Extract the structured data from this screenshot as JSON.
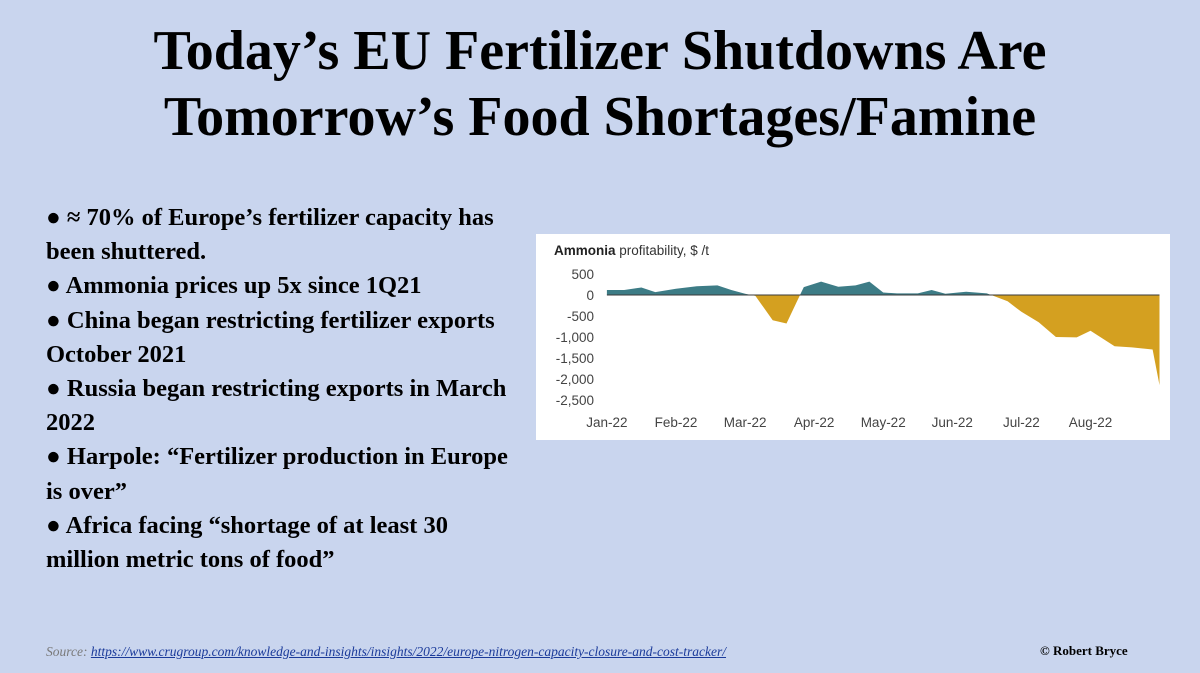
{
  "title": {
    "line1": "Today’s EU Fertilizer Shutdowns Are",
    "line2": "Tomorrow’s Food Shortages/Famine"
  },
  "bullets": [
    "●  ≈ 70% of Europe’s fertilizer capacity has been shuttered.",
    "● Ammonia prices up 5x since 1Q21",
    "● China began restricting fertilizer exports October 2021",
    "● Russia began restricting exports in March 2022",
    "● Harpole: “Fertilizer production in Europe is over”",
    "● Africa facing “shortage of at least 30 million metric tons of food”"
  ],
  "source": {
    "label": "Source: ",
    "url": "https://www.crugroup.com/knowledge-and-insights/insights/2022/europe-nitrogen-capacity-closure-and-cost-tracker/"
  },
  "copyright": "© Robert Bryce",
  "chart_data": {
    "type": "area",
    "title_bold": "Ammonia",
    "title_rest": " profitability, $ /t",
    "y_ticks": [
      "500",
      "0",
      "-500",
      "-1,000",
      "-1,500",
      "-2,000",
      "-2,500"
    ],
    "y_tick_values": [
      500,
      0,
      -500,
      -1000,
      -1500,
      -2000,
      -2500
    ],
    "x_ticks": [
      "Jan-22",
      "Feb-22",
      "Mar-22",
      "Apr-22",
      "May-22",
      "Jun-22",
      "Jul-22",
      "Aug-22"
    ],
    "ylim": [
      -2600,
      550
    ],
    "xlim": [
      -0.1,
      8.05
    ],
    "x": [
      0,
      0.25,
      0.5,
      0.7,
      1.0,
      1.3,
      1.6,
      1.8,
      2.0,
      2.15,
      2.4,
      2.6,
      2.85,
      3.1,
      3.35,
      3.6,
      3.8,
      4.0,
      4.2,
      4.5,
      4.7,
      4.9,
      5.2,
      5.5,
      5.8,
      6.0,
      6.25,
      6.5,
      6.8,
      7.0,
      7.35,
      7.6,
      7.9,
      8.0
    ],
    "y": [
      120,
      120,
      180,
      70,
      150,
      210,
      230,
      120,
      30,
      -20,
      -600,
      -680,
      190,
      320,
      200,
      230,
      320,
      60,
      40,
      40,
      120,
      30,
      80,
      40,
      -150,
      -400,
      -650,
      -1000,
      -1010,
      -850,
      -1220,
      -1250,
      -1300,
      -2150
    ],
    "positive_color": "#3d7c86",
    "negative_color": "#d4a020"
  }
}
